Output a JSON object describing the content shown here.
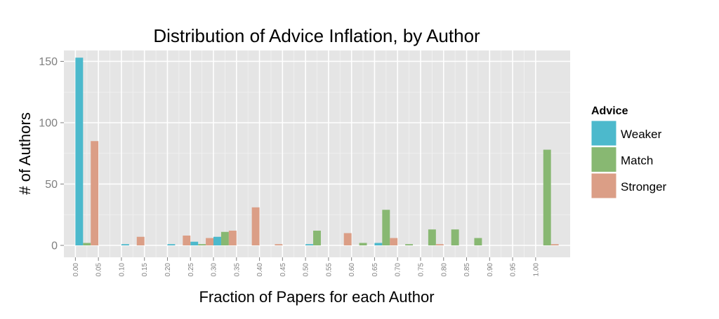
{
  "chart_data": {
    "type": "bar",
    "title": "Distribution of Advice Inflation, by Author",
    "xlabel": "Fraction of Papers for each Author",
    "ylabel": "# of Authors",
    "xlim": [
      0,
      1.05
    ],
    "ylim": [
      0,
      160
    ],
    "x_ticks": [
      "0.00",
      "0.05",
      "0.10",
      "0.15",
      "0.20",
      "0.25",
      "0.30",
      "0.35",
      "0.40",
      "0.45",
      "0.50",
      "0.55",
      "0.60",
      "0.65",
      "0.70",
      "0.75",
      "0.80",
      "0.85",
      "0.90",
      "0.95",
      "1.00"
    ],
    "y_ticks": [
      0,
      50,
      100,
      150
    ],
    "grid": true,
    "legend": {
      "title": "Advice",
      "position": "right"
    },
    "series": [
      {
        "name": "Weaker",
        "color": "#4cb9cc",
        "points": [
          [
            0.025,
            153
          ],
          [
            0.125,
            1
          ],
          [
            0.225,
            1
          ],
          [
            0.275,
            3
          ],
          [
            0.325,
            7
          ],
          [
            0.525,
            1
          ],
          [
            0.675,
            2
          ]
        ]
      },
      {
        "name": "Match",
        "color": "#88b872",
        "points": [
          [
            0.025,
            2
          ],
          [
            0.275,
            1
          ],
          [
            0.325,
            11
          ],
          [
            0.525,
            12
          ],
          [
            0.625,
            2
          ],
          [
            0.675,
            29
          ],
          [
            0.725,
            1
          ],
          [
            0.775,
            13
          ],
          [
            0.825,
            13
          ],
          [
            0.875,
            6
          ],
          [
            1.025,
            78
          ]
        ]
      },
      {
        "name": "Stronger",
        "color": "#db9e86",
        "points": [
          [
            0.025,
            85
          ],
          [
            0.125,
            7
          ],
          [
            0.225,
            8
          ],
          [
            0.275,
            6
          ],
          [
            0.325,
            12
          ],
          [
            0.375,
            31
          ],
          [
            0.425,
            1
          ],
          [
            0.575,
            10
          ],
          [
            0.675,
            6
          ],
          [
            0.775,
            1
          ],
          [
            1.025,
            1
          ]
        ]
      }
    ]
  }
}
